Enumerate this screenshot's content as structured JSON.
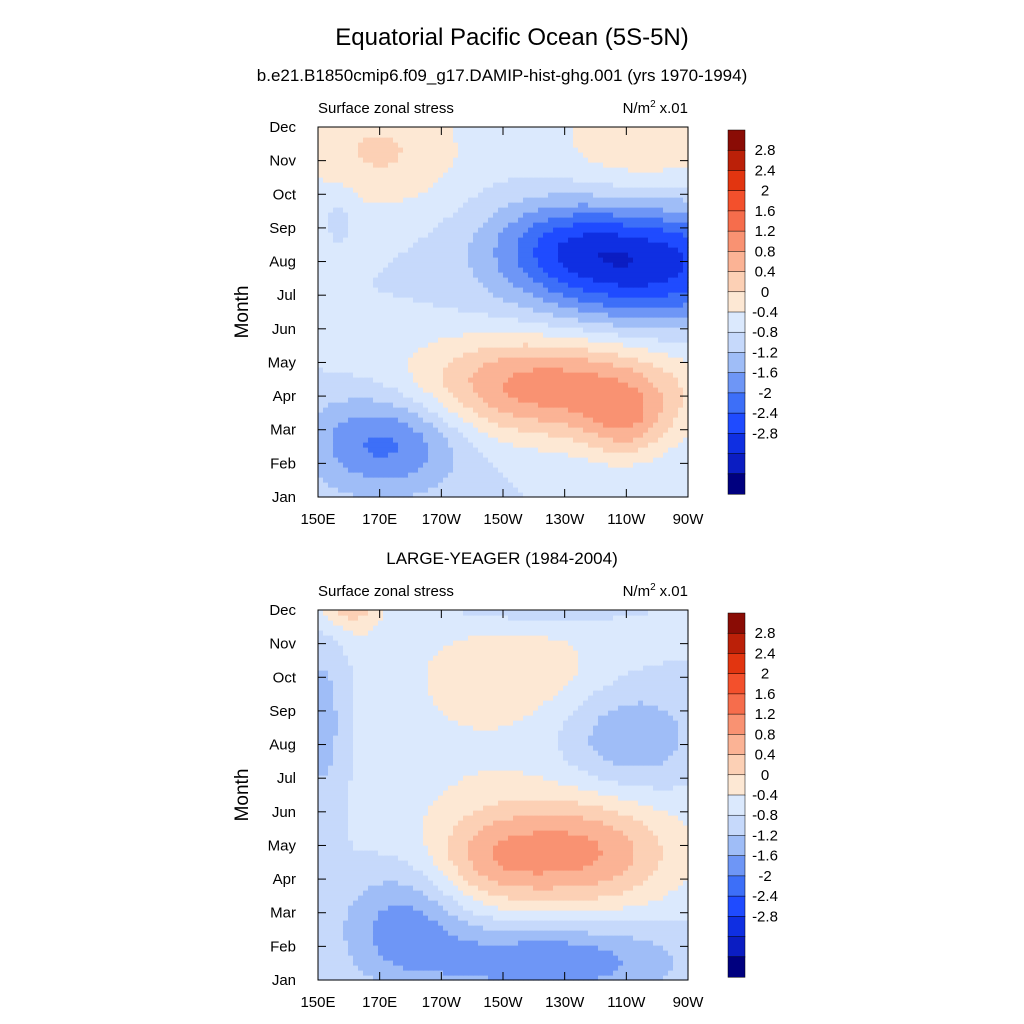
{
  "figure": {
    "title": "Equatorial Pacific Ocean (5S-5N)"
  },
  "colors": {
    "levels_colors": [
      "#00007f",
      "#0b1dc2",
      "#0f2fe2",
      "#1f4bff",
      "#3d6ff8",
      "#6e96f6",
      "#9fbdf7",
      "#c6d9fb",
      "#dbe9fd",
      "#fde8d4",
      "#fcd0b5",
      "#fbb395",
      "#f99272",
      "#f66d4c",
      "#f3502c",
      "#e23510",
      "#bb2008",
      "#8a0c05"
    ]
  },
  "chart_data": [
    {
      "type": "heatmap",
      "title": "b.e21.B1850cmip6.f09_g17.DAMIP-hist-ghg.001 (yrs 1970-1994)",
      "left_label": "Surface zonal stress",
      "units": "N/m",
      "units_exp": "2",
      "units_scale": "x.01",
      "xlabel": "",
      "ylabel": "Month",
      "x_ticks": [
        "150E",
        "170E",
        "170W",
        "150W",
        "130W",
        "110W",
        "90W"
      ],
      "y_ticks": [
        "Jan",
        "Feb",
        "Mar",
        "Apr",
        "May",
        "Jun",
        "Jul",
        "Aug",
        "Sep",
        "Oct",
        "Nov",
        "Dec"
      ],
      "x_range_deg": [
        150,
        270
      ],
      "contour_levels": [
        -2.8,
        -2.4,
        -2,
        -1.6,
        -1.2,
        -0.8,
        -0.4,
        0,
        0.4,
        0.8,
        1.2,
        1.6,
        2,
        2.4,
        2.8
      ],
      "colorbar_labels": [
        "2.8",
        "2.4",
        "2",
        "1.6",
        "1.2",
        "0.8",
        "0.4",
        "0",
        "-0.4",
        "-0.8",
        "-1.2",
        "-1.6",
        "-2",
        "-2.4",
        "-2.8"
      ],
      "field_components": [
        {
          "x": 255,
          "y": 7.0,
          "sx": 28,
          "sy": 1.3,
          "a": -2.3
        },
        {
          "x": 228,
          "y": 7.6,
          "sx": 16,
          "sy": 0.9,
          "a": -0.7
        },
        {
          "x": 225,
          "y": 3.3,
          "sx": 32,
          "sy": 1.1,
          "a": 1.85
        },
        {
          "x": 250,
          "y": 2.2,
          "sx": 10,
          "sy": 0.8,
          "a": 0.9
        },
        {
          "x": 172,
          "y": 1.7,
          "sx": 18,
          "sy": 1.1,
          "a": -1.4
        },
        {
          "x": 255,
          "y": 10.4,
          "sx": 22,
          "sy": 1.5,
          "a": 0.75
        },
        {
          "x": 170,
          "y": 10.3,
          "sx": 20,
          "sy": 1.3,
          "a": 0.85
        },
        {
          "x": 157,
          "y": 8.6,
          "sx": 4,
          "sy": 0.6,
          "a": -0.3
        }
      ]
    },
    {
      "type": "heatmap",
      "title": "LARGE-YEAGER (1984-2004)",
      "left_label": "Surface zonal stress",
      "units": "N/m",
      "units_exp": "2",
      "units_scale": "x.01",
      "xlabel": "",
      "ylabel": "Month",
      "x_ticks": [
        "150E",
        "170E",
        "170W",
        "150W",
        "130W",
        "110W",
        "90W"
      ],
      "y_ticks": [
        "Jan",
        "Feb",
        "Mar",
        "Apr",
        "May",
        "Jun",
        "Jul",
        "Aug",
        "Sep",
        "Oct",
        "Nov",
        "Dec"
      ],
      "x_range_deg": [
        150,
        270
      ],
      "contour_levels": [
        -2.8,
        -2.4,
        -2,
        -1.6,
        -1.2,
        -0.8,
        -0.4,
        0,
        0.4,
        0.8,
        1.2,
        1.6,
        2,
        2.4,
        2.8
      ],
      "colorbar_labels": [
        "2.8",
        "2.4",
        "2",
        "1.6",
        "1.2",
        "0.8",
        "0.4",
        "0",
        "-0.4",
        "-0.8",
        "-1.2",
        "-1.6",
        "-2",
        "-2.4",
        "-2.8"
      ],
      "field_components": [
        {
          "x": 160,
          "y": 11.8,
          "sx": 8,
          "sy": 0.9,
          "a": 1.6
        },
        {
          "x": 235,
          "y": 3.8,
          "sx": 22,
          "sy": 1.2,
          "a": 1.55
        },
        {
          "x": 205,
          "y": 3.6,
          "sx": 14,
          "sy": 1.0,
          "a": 0.8
        },
        {
          "x": 178,
          "y": 1.7,
          "sx": 14,
          "sy": 1.2,
          "a": -1.0
        },
        {
          "x": 225,
          "y": 0.6,
          "sx": 28,
          "sy": 0.8,
          "a": -1.2
        },
        {
          "x": 250,
          "y": 7.2,
          "sx": 16,
          "sy": 1.2,
          "a": -0.9
        },
        {
          "x": 220,
          "y": 11.8,
          "sx": 18,
          "sy": 0.7,
          "a": -1.0
        },
        {
          "x": 215,
          "y": 9.3,
          "sx": 22,
          "sy": 1.1,
          "a": 0.6
        },
        {
          "x": 152,
          "y": 7.5,
          "sx": 6,
          "sy": 2.2,
          "a": -0.7
        },
        {
          "x": 200,
          "y": 6.5,
          "sx": 45,
          "sy": 2.5,
          "a": 0.3
        }
      ]
    }
  ]
}
